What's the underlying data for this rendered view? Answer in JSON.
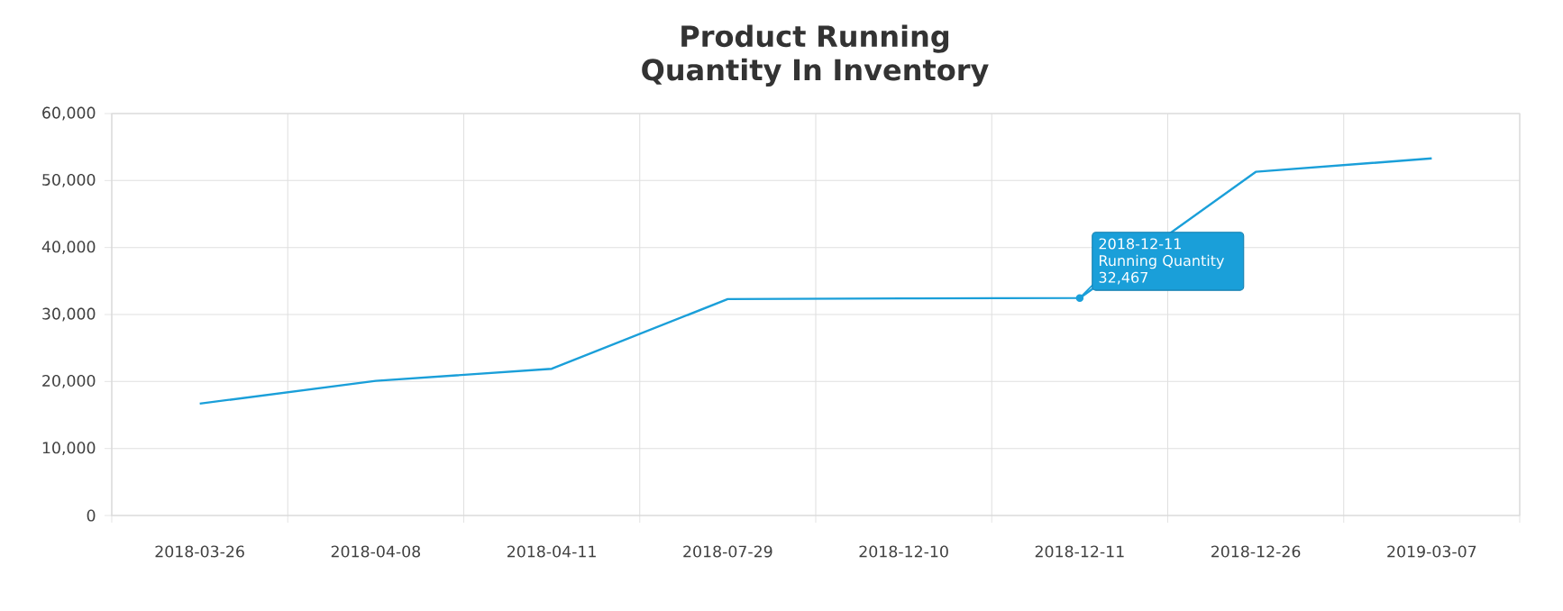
{
  "chart_data": {
    "type": "line",
    "title": "Product Running Quantity In Inventory",
    "categories": [
      "2018-03-26",
      "2018-04-08",
      "2018-04-11",
      "2018-07-29",
      "2018-12-10",
      "2018-12-11",
      "2018-12-26",
      "2019-03-07"
    ],
    "series": [
      {
        "color": "#1a9fd9",
        "values": [
          16700,
          20100,
          21900,
          32300,
          32400,
          32467,
          51300,
          53300
        ]
      }
    ],
    "ylim": [
      0,
      60000
    ],
    "yticks": [
      {
        "value": 0,
        "label": "0"
      },
      {
        "value": 10000,
        "label": "10,000"
      },
      {
        "value": 20000,
        "label": "20,000"
      },
      {
        "value": 30000,
        "label": "30,000"
      },
      {
        "value": 40000,
        "label": "40,000"
      },
      {
        "value": 50000,
        "label": "50,000"
      },
      {
        "value": 60000,
        "label": "60,000"
      }
    ],
    "grid": true,
    "marker": "none",
    "line_style": "solid",
    "annotations": [
      {
        "text": "2018-12-11 Running Quantity 32,467",
        "x": "2018-12-11",
        "y": 32467
      }
    ]
  }
}
